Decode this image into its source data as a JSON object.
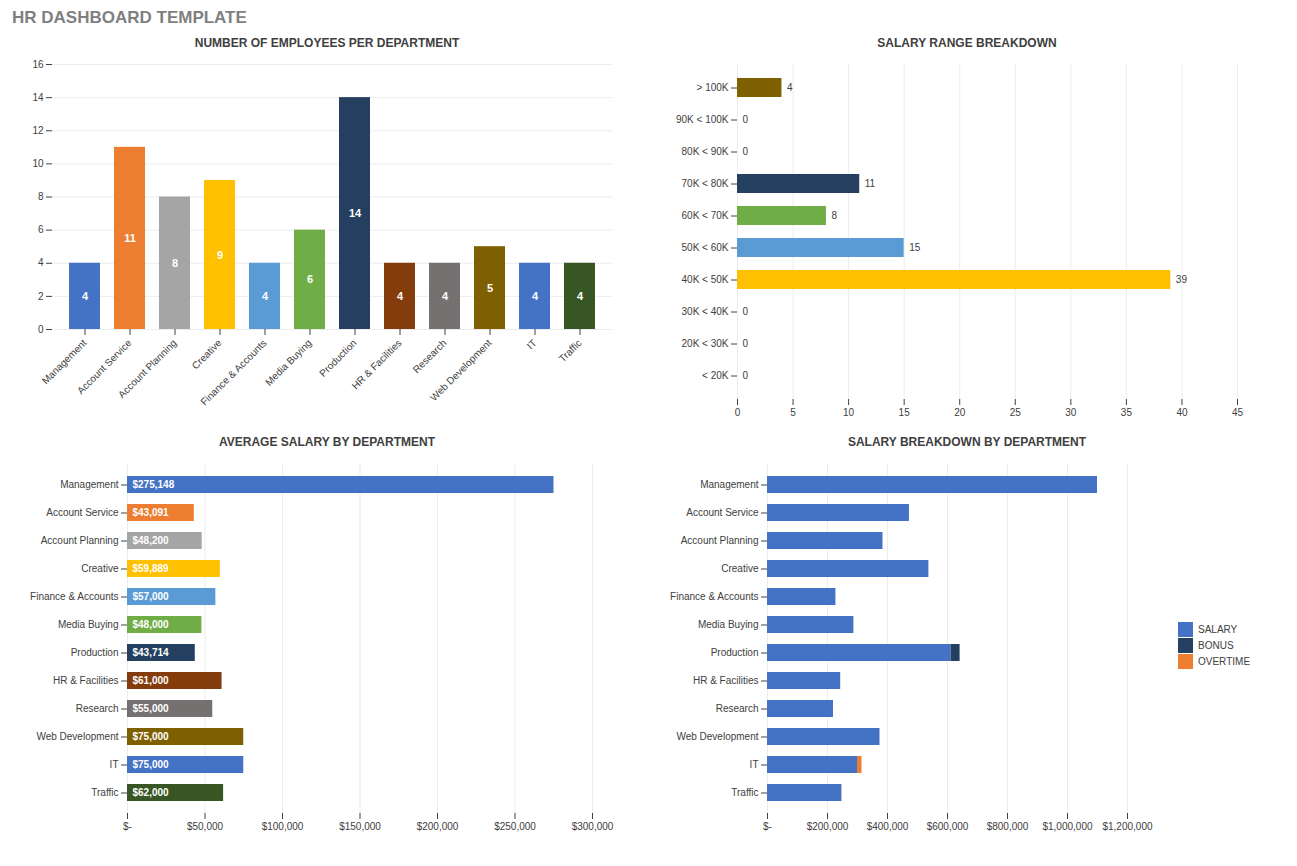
{
  "title": "HR DASHBOARD TEMPLATE",
  "chart_data": [
    {
      "type": "bar",
      "title": "NUMBER OF EMPLOYEES PER DEPARTMENT",
      "categories": [
        "Management",
        "Account Service",
        "Account Planning",
        "Creative",
        "Finance & Accounts",
        "Media Buying",
        "Production",
        "HR & Facilities",
        "Research",
        "Web Development",
        "IT",
        "Traffic"
      ],
      "values": [
        4,
        11,
        8,
        9,
        4,
        6,
        14,
        4,
        4,
        5,
        4,
        4
      ],
      "colors": [
        "#4472c4",
        "#ed7d31",
        "#a5a5a5",
        "#ffc000",
        "#5b9bd5",
        "#70ad47",
        "#243f60",
        "#843c0c",
        "#767171",
        "#7f6000",
        "#4472c4",
        "#375623"
      ],
      "ylim": [
        0,
        16
      ],
      "yticks": [
        0,
        2,
        4,
        6,
        8,
        10,
        12,
        14,
        16
      ],
      "grid": true,
      "data_labels": true
    },
    {
      "type": "bar",
      "title": "SALARY RANGE BREAKDOWN",
      "orientation": "horizontal",
      "categories": [
        "> 100K",
        "90K < 100K",
        "80K < 90K",
        "70K < 80K",
        "60K < 70K",
        "50K < 60K",
        "40K < 50K",
        "30K < 40K",
        "20K < 30K",
        "< 20K"
      ],
      "values": [
        4,
        0,
        0,
        11,
        8,
        15,
        39,
        0,
        0,
        0
      ],
      "colors": [
        "#7f6000",
        "#c0c0c0",
        "#c0c0c0",
        "#243f60",
        "#70ad47",
        "#5b9bd5",
        "#ffc000",
        "#c0c0c0",
        "#c0c0c0",
        "#c0c0c0"
      ],
      "xlim": [
        0,
        45
      ],
      "xticks": [
        0,
        5,
        10,
        15,
        20,
        25,
        30,
        35,
        40,
        45
      ],
      "grid": true,
      "data_labels": true
    },
    {
      "type": "bar",
      "title": "AVERAGE SALARY BY DEPARTMENT",
      "orientation": "horizontal",
      "categories": [
        "Management",
        "Account Service",
        "Account Planning",
        "Creative",
        "Finance & Accounts",
        "Media Buying",
        "Production",
        "HR & Facilities",
        "Research",
        "Web Development",
        "IT",
        "Traffic"
      ],
      "values": [
        275148,
        43091,
        48200,
        59889,
        57000,
        48000,
        43714,
        61000,
        55000,
        75000,
        75000,
        62000
      ],
      "value_labels": [
        "$275,148",
        "$43,091",
        "$48,200",
        "$59,889",
        "$57,000",
        "$48,000",
        "$43,714",
        "$61,000",
        "$55,000",
        "$75,000",
        "$75,000",
        "$62,000"
      ],
      "colors": [
        "#4472c4",
        "#ed7d31",
        "#a5a5a5",
        "#ffc000",
        "#5b9bd5",
        "#70ad47",
        "#243f60",
        "#843c0c",
        "#767171",
        "#7f6000",
        "#4472c4",
        "#375623"
      ],
      "xlim": [
        0,
        300000
      ],
      "xticks": [
        {
          "value": 0,
          "label": "$-"
        },
        {
          "value": 50000,
          "label": "$50,000"
        },
        {
          "value": 100000,
          "label": "$100,000"
        },
        {
          "value": 150000,
          "label": "$150,000"
        },
        {
          "value": 200000,
          "label": "$200,000"
        },
        {
          "value": 250000,
          "label": "$250,000"
        },
        {
          "value": 300000,
          "label": "$300,000"
        }
      ],
      "grid": true,
      "data_labels": true
    },
    {
      "type": "bar",
      "title": "SALARY BREAKDOWN BY DEPARTMENT",
      "orientation": "horizontal",
      "stacked": true,
      "categories": [
        "Management",
        "Account Service",
        "Account Planning",
        "Creative",
        "Finance & Accounts",
        "Media Buying",
        "Production",
        "HR & Facilities",
        "Research",
        "Web Development",
        "IT",
        "Traffic"
      ],
      "series": [
        {
          "name": "SALARY",
          "color": "#4472c4",
          "values": [
            1100000,
            473000,
            385000,
            538000,
            228000,
            288000,
            612000,
            244000,
            220000,
            375000,
            300000,
            248000
          ]
        },
        {
          "name": "BONUS",
          "color": "#243f60",
          "values": [
            0,
            0,
            0,
            0,
            0,
            0,
            30000,
            0,
            0,
            0,
            0,
            0
          ]
        },
        {
          "name": "OVERTIME",
          "color": "#ed7d31",
          "values": [
            0,
            0,
            0,
            0,
            0,
            0,
            0,
            0,
            0,
            0,
            15000,
            0
          ]
        }
      ],
      "xlim": [
        0,
        1200000
      ],
      "xticks": [
        {
          "value": 0,
          "label": "$-"
        },
        {
          "value": 200000,
          "label": "$200,000"
        },
        {
          "value": 400000,
          "label": "$400,000"
        },
        {
          "value": 600000,
          "label": "$600,000"
        },
        {
          "value": 800000,
          "label": "$800,000"
        },
        {
          "value": 1000000,
          "label": "$1,000,000"
        },
        {
          "value": 1200000,
          "label": "$1,200,000"
        }
      ],
      "grid": true,
      "legend": "right"
    }
  ]
}
